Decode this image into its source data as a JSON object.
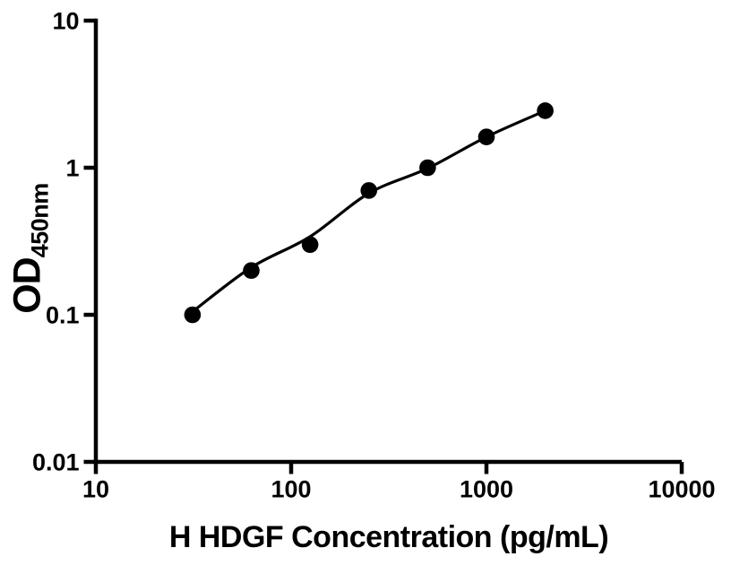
{
  "figure": {
    "background_color": "#ffffff",
    "axis_color": "#000000",
    "marker_color": "#000000",
    "curve_color": "#000000"
  },
  "chart_data": {
    "type": "scatter",
    "title": "",
    "xlabel": "H HDGF Concentration (pg/mL)",
    "ylabel_main": "OD",
    "ylabel_sub": "450nm",
    "x_scale": "log",
    "y_scale": "log",
    "xlim": [
      10,
      10000
    ],
    "ylim": [
      0.01,
      10
    ],
    "x_ticks": [
      10,
      100,
      1000,
      10000
    ],
    "x_tick_labels": [
      "10",
      "100",
      "1000",
      "10000"
    ],
    "y_ticks": [
      0.01,
      0.1,
      1,
      10
    ],
    "y_tick_labels": [
      "0.01",
      "0.1",
      "1",
      "10"
    ],
    "grid": false,
    "legend": false,
    "series": [
      {
        "name": "H HDGF standard curve",
        "marker": "filled-circle",
        "color": "#000000",
        "x": [
          31.25,
          62.5,
          125,
          250,
          500,
          1000,
          2000
        ],
        "y": [
          0.1,
          0.2,
          0.3,
          0.7,
          1.0,
          1.62,
          2.44
        ]
      }
    ],
    "fit_curve": {
      "name": "fitted standard curve line",
      "x": [
        31.25,
        62.5,
        125,
        250,
        500,
        1000,
        2000
      ],
      "y": [
        0.105,
        0.21,
        0.34,
        0.67,
        0.99,
        1.62,
        2.44
      ]
    }
  }
}
